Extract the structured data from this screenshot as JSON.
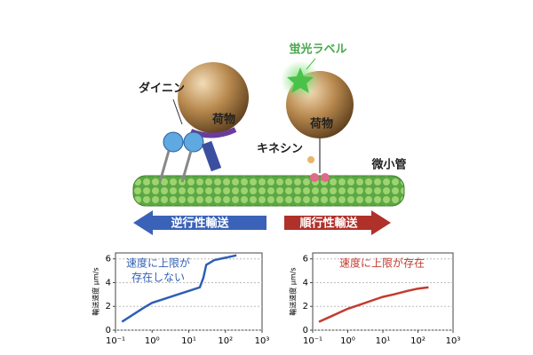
{
  "diagram": {
    "dynein": "ダイニン",
    "kinesin": "キネシン",
    "cargo_left": "荷物",
    "cargo_right": "荷物",
    "fluorescent_label": "蛍光ラベル",
    "microtubule": "微小管",
    "retrograde": "逆行性輸送",
    "anterograde": "順行性輸送"
  },
  "charts": [
    {
      "type": "line",
      "ylabel": "輸送速度 μm/s",
      "annotation": [
        "速度に上限が",
        "存在しない"
      ],
      "annotation_color": "#2f5fb5",
      "log_x": true,
      "grid": true,
      "xlim": [
        0.1,
        1000
      ],
      "xticks": [
        {
          "value": 0.1,
          "label": "10⁻¹"
        },
        {
          "value": 1,
          "label": "10⁰"
        },
        {
          "value": 10,
          "label": "10¹"
        },
        {
          "value": 100,
          "label": "10²"
        },
        {
          "value": 1000,
          "label": "10³"
        }
      ],
      "ylim": [
        0,
        6.5
      ],
      "yticks": [
        0,
        2,
        4,
        6
      ],
      "series": [
        {
          "color": "#2f5fb5",
          "x": [
            0.15,
            0.3,
            0.6,
            1,
            2,
            5,
            10,
            20,
            25,
            30,
            50,
            100,
            200
          ],
          "values": [
            0.7,
            1.3,
            1.9,
            2.3,
            2.6,
            3.0,
            3.3,
            3.6,
            4.4,
            5.5,
            5.9,
            6.1,
            6.3
          ]
        }
      ]
    },
    {
      "type": "line",
      "ylabel": "輸送速度 μm/s",
      "annotation": [
        "速度に上限が存在"
      ],
      "annotation_color": "#c23b2e",
      "log_x": true,
      "grid": true,
      "xlim": [
        0.1,
        1000
      ],
      "xticks": [
        {
          "value": 0.1,
          "label": "10⁻¹"
        },
        {
          "value": 1,
          "label": "10⁰"
        },
        {
          "value": 10,
          "label": "10¹"
        },
        {
          "value": 100,
          "label": "10²"
        },
        {
          "value": 1000,
          "label": "10³"
        }
      ],
      "ylim": [
        0,
        6.5
      ],
      "yticks": [
        0,
        2,
        4,
        6
      ],
      "series": [
        {
          "color": "#c23b2e",
          "x": [
            0.15,
            0.3,
            0.6,
            1,
            2,
            5,
            10,
            20,
            50,
            100,
            200
          ],
          "values": [
            0.7,
            1.1,
            1.5,
            1.8,
            2.1,
            2.5,
            2.8,
            3.0,
            3.3,
            3.5,
            3.6
          ]
        }
      ]
    }
  ]
}
